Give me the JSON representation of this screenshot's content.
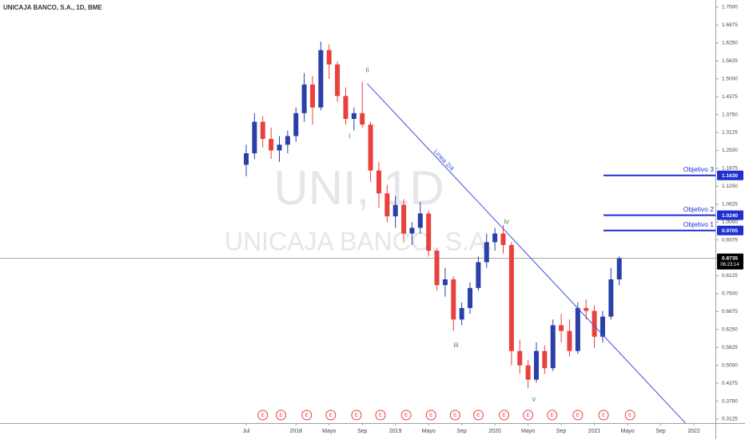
{
  "chart_data": {
    "type": "candlestick",
    "title": "UNICAJA BANCO, S.A., 1D, BME",
    "watermark": {
      "symbol": "UNI, 1D",
      "name": "UNICAJA BANCO, S.A."
    },
    "x": [
      0,
      1,
      2,
      3,
      4,
      5,
      6,
      7,
      8,
      9,
      10,
      11,
      12,
      13,
      14,
      15,
      16,
      17,
      18,
      19,
      20,
      21,
      22,
      23,
      24,
      25,
      26,
      27,
      28,
      29,
      30,
      31,
      32,
      33,
      34,
      35,
      36,
      37,
      38,
      39,
      40,
      41,
      42,
      43,
      44,
      45
    ],
    "open": [
      1.2,
      1.24,
      1.35,
      1.29,
      1.25,
      1.27,
      1.3,
      1.38,
      1.48,
      1.4,
      1.6,
      1.55,
      1.44,
      1.36,
      1.38,
      1.34,
      1.18,
      1.1,
      1.02,
      1.06,
      0.96,
      0.98,
      1.03,
      0.9,
      0.78,
      0.8,
      0.66,
      0.7,
      0.77,
      0.86,
      0.93,
      0.96,
      0.92,
      0.55,
      0.5,
      0.45,
      0.55,
      0.49,
      0.64,
      0.62,
      0.55,
      0.7,
      0.69,
      0.6,
      0.67,
      0.8
    ],
    "high": [
      1.27,
      1.38,
      1.37,
      1.33,
      1.3,
      1.32,
      1.4,
      1.52,
      1.51,
      1.63,
      1.62,
      1.56,
      1.47,
      1.4,
      1.49,
      1.35,
      1.21,
      1.13,
      1.09,
      1.08,
      1.0,
      1.07,
      1.04,
      0.91,
      0.84,
      0.81,
      0.72,
      0.79,
      0.88,
      0.96,
      0.98,
      0.99,
      0.93,
      0.59,
      0.52,
      0.58,
      0.57,
      0.66,
      0.68,
      0.66,
      0.72,
      0.73,
      0.71,
      0.69,
      0.84,
      0.88
    ],
    "low": [
      1.16,
      1.22,
      1.26,
      1.22,
      1.21,
      1.24,
      1.28,
      1.35,
      1.34,
      1.39,
      1.5,
      1.42,
      1.34,
      1.32,
      1.33,
      1.14,
      1.05,
      1.0,
      0.98,
      0.93,
      0.92,
      0.96,
      0.88,
      0.76,
      0.74,
      0.62,
      0.64,
      0.68,
      0.76,
      0.84,
      0.9,
      0.89,
      0.5,
      0.47,
      0.42,
      0.44,
      0.47,
      0.48,
      0.58,
      0.53,
      0.54,
      0.66,
      0.56,
      0.58,
      0.66,
      0.78
    ],
    "close": [
      1.24,
      1.35,
      1.29,
      1.25,
      1.27,
      1.3,
      1.38,
      1.48,
      1.4,
      1.6,
      1.55,
      1.44,
      1.36,
      1.38,
      1.34,
      1.18,
      1.1,
      1.02,
      1.06,
      0.96,
      0.98,
      1.03,
      0.9,
      0.78,
      0.8,
      0.66,
      0.7,
      0.77,
      0.86,
      0.93,
      0.96,
      0.92,
      0.55,
      0.5,
      0.45,
      0.55,
      0.49,
      0.64,
      0.62,
      0.55,
      0.7,
      0.69,
      0.6,
      0.67,
      0.8,
      0.8735
    ],
    "up_color": "#2a3fa8",
    "down_color": "#e8413e",
    "xlim": [
      -29.7,
      56.6
    ],
    "xticks": [
      {
        "value": 0,
        "label": "Jul"
      },
      {
        "value": 6,
        "label": "2018"
      },
      {
        "value": 10,
        "label": "Mayo"
      },
      {
        "value": 14,
        "label": "Sep"
      },
      {
        "value": 18,
        "label": "2019"
      },
      {
        "value": 22,
        "label": "Mayo"
      },
      {
        "value": 26,
        "label": "Sep"
      },
      {
        "value": 30,
        "label": "2020"
      },
      {
        "value": 34,
        "label": "Mayo"
      },
      {
        "value": 38,
        "label": "Sep"
      },
      {
        "value": 42,
        "label": "2021"
      },
      {
        "value": 46,
        "label": "Mayo"
      },
      {
        "value": 50,
        "label": "Sep"
      },
      {
        "value": 54,
        "label": "2022"
      }
    ],
    "ylim": [
      0.2986,
      1.775
    ],
    "yticks": [
      {
        "value": 0.3125,
        "label": "0.3125"
      },
      {
        "value": 0.375,
        "label": "0.3750"
      },
      {
        "value": 0.4375,
        "label": "0.4375"
      },
      {
        "value": 0.5,
        "label": "0.5000"
      },
      {
        "value": 0.5625,
        "label": "0.5625"
      },
      {
        "value": 0.625,
        "label": "0.6250"
      },
      {
        "value": 0.6875,
        "label": "0.6875"
      },
      {
        "value": 0.75,
        "label": "0.7500"
      },
      {
        "value": 0.8125,
        "label": "0.8125"
      },
      {
        "value": 0.875,
        "label": "0.8750"
      },
      {
        "value": 0.9375,
        "label": "0.9375"
      },
      {
        "value": 1.0,
        "label": "1.0000"
      },
      {
        "value": 1.0625,
        "label": "1.0625"
      },
      {
        "value": 1.125,
        "label": "1.1250"
      },
      {
        "value": 1.1875,
        "label": "1.1875"
      },
      {
        "value": 1.25,
        "label": "1.2500"
      },
      {
        "value": 1.3125,
        "label": "1.3125"
      },
      {
        "value": 1.375,
        "label": "1.3750"
      },
      {
        "value": 1.4375,
        "label": "1.4375"
      },
      {
        "value": 1.5,
        "label": "1.5000"
      },
      {
        "value": 1.5625,
        "label": "1.5625"
      },
      {
        "value": 1.625,
        "label": "1.6250"
      },
      {
        "value": 1.6875,
        "label": "1.6875"
      },
      {
        "value": 1.75,
        "label": "1.7500"
      }
    ],
    "grid": false,
    "wave_labels": [
      {
        "label": "i",
        "x": 12.5,
        "y": 1.3
      },
      {
        "label": "ii",
        "x": 14.6,
        "y": 1.53
      },
      {
        "label": "iii",
        "x": 25.3,
        "y": 0.57
      },
      {
        "label": "iv",
        "x": 31.4,
        "y": 1.0
      },
      {
        "label": "v",
        "x": 34.7,
        "y": 0.38
      }
    ],
    "wave_color": "#4c8c4a",
    "trend_line": {
      "label": "Linea 2/4",
      "x": [
        14.6,
        53.0
      ],
      "y": [
        1.483,
        0.298
      ],
      "color": "#3f4fd6"
    },
    "targets": [
      {
        "name": "Objetivo 3",
        "value": 1.163,
        "value_label": "1.1630"
      },
      {
        "name": "Objetivo 2",
        "value": 1.024,
        "value_label": "1.0240"
      },
      {
        "name": "Objetivo 1",
        "value": 0.9705,
        "value_label": "0.9705"
      }
    ],
    "target_start": 43.1,
    "target_color": "#1f2fd0",
    "last_price": {
      "value": 0.8735,
      "countdown": "06:23:14"
    },
    "earnings": {
      "label": "E",
      "x": [
        2.0,
        4.2,
        7.3,
        10.2,
        13.3,
        16.2,
        19.3,
        22.3,
        25.2,
        28.0,
        31.1,
        34.0,
        36.9,
        40.0,
        43.1,
        46.3
      ]
    }
  }
}
